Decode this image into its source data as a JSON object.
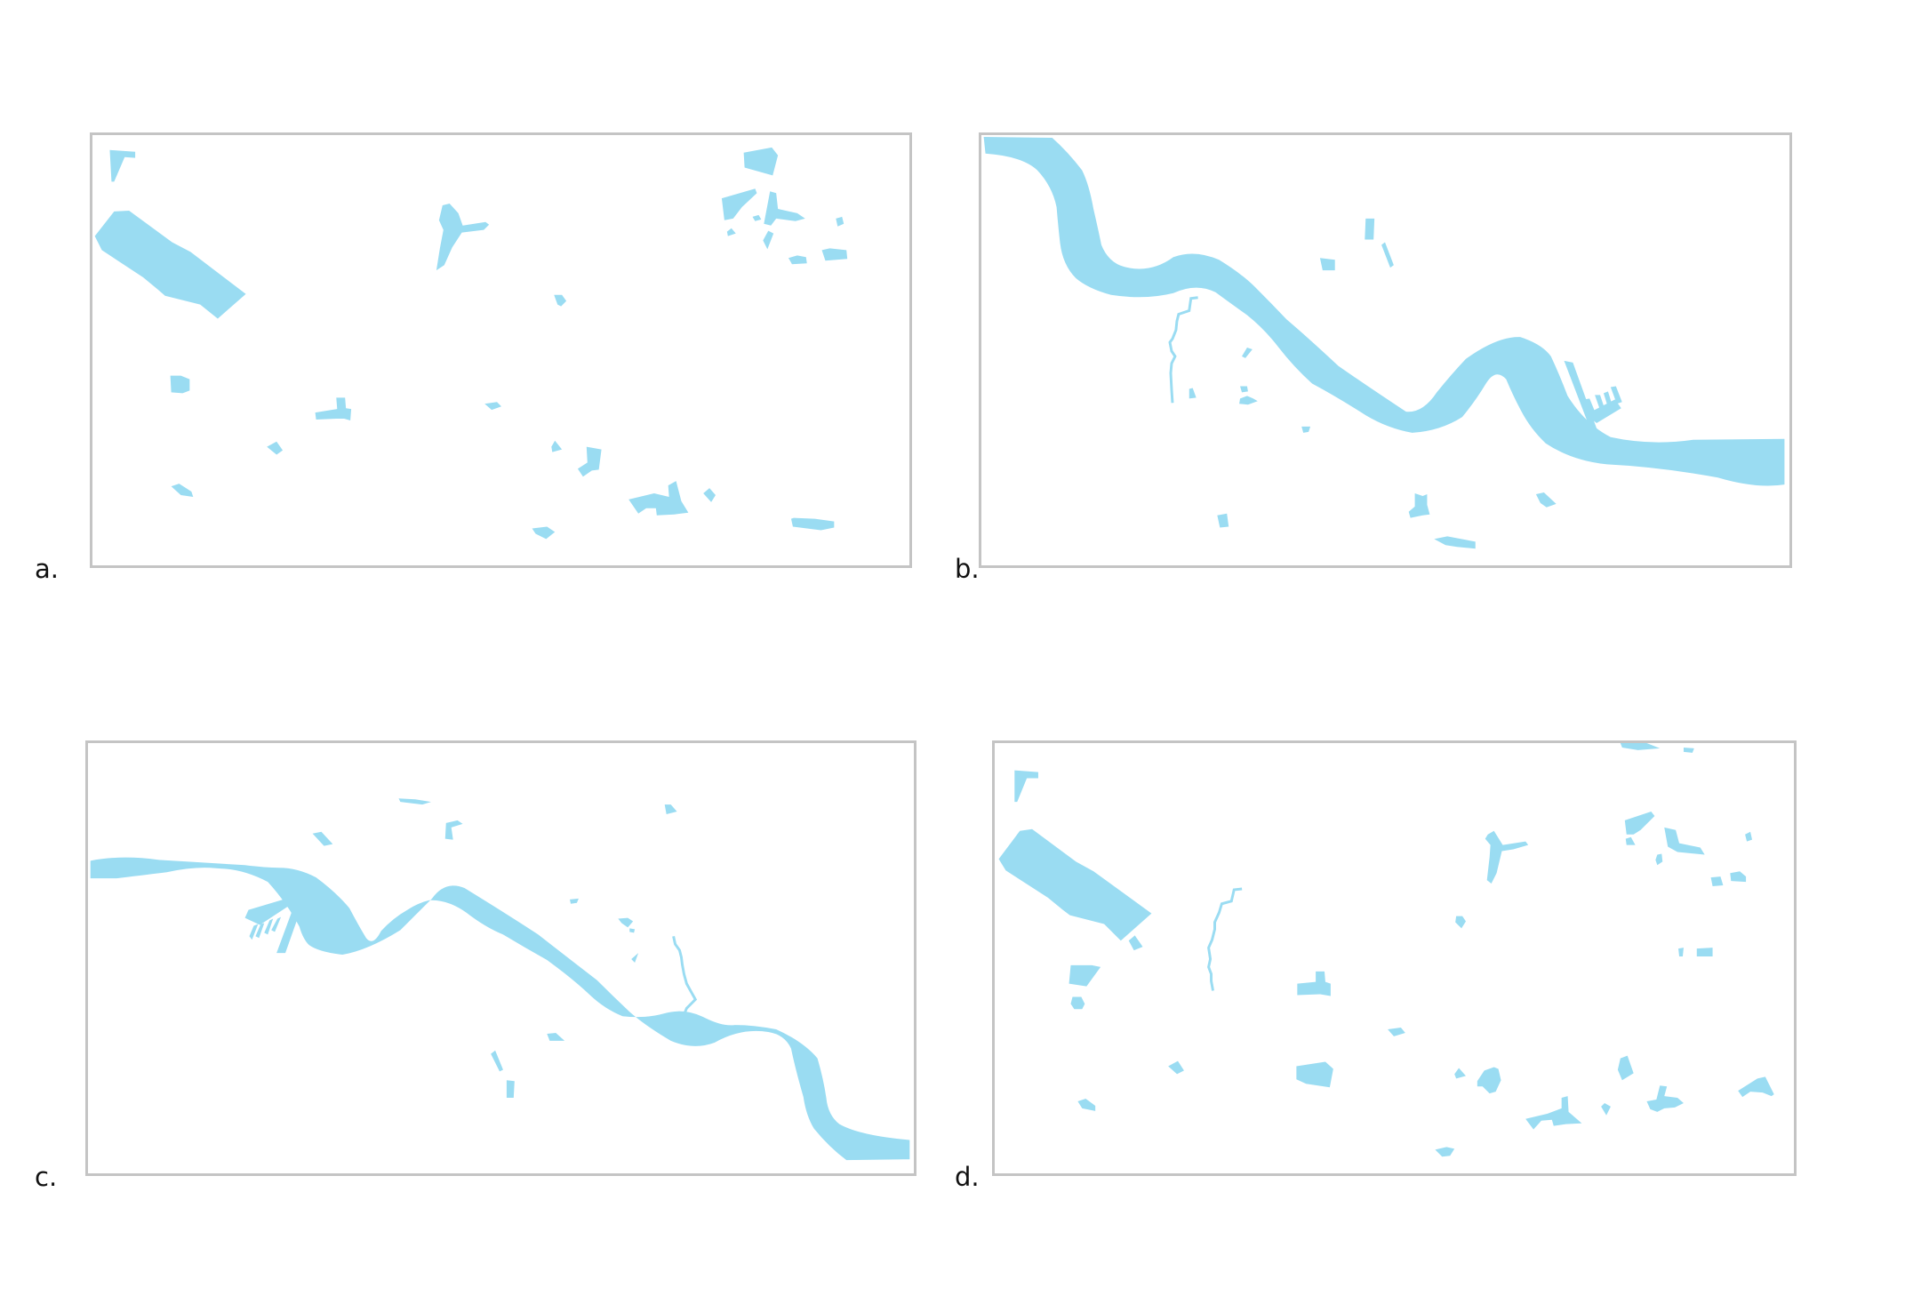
{
  "panels": [
    {
      "id": "a",
      "label": "a.",
      "content": "scattered-water-bodies"
    },
    {
      "id": "b",
      "label": "b.",
      "content": "river-and-water-bodies"
    },
    {
      "id": "c",
      "label": "c.",
      "content": "river-mirrored"
    },
    {
      "id": "d",
      "label": "d.",
      "content": "scattered-water-bodies-variant"
    }
  ],
  "colors": {
    "water": "#9adcf2",
    "frame": "#c4c4c4",
    "label": "#111111"
  }
}
